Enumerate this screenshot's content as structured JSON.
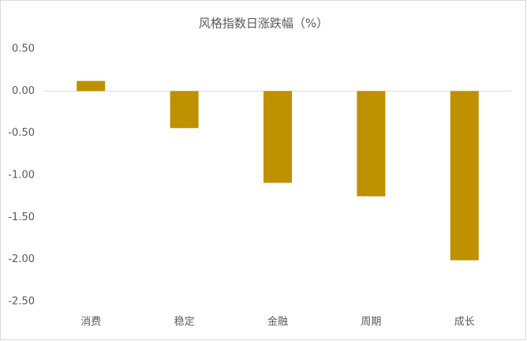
{
  "chart_data": {
    "type": "bar",
    "title": "风格指数日涨跌幅（%）",
    "categories": [
      "消费",
      "稳定",
      "金融",
      "周期",
      "成长"
    ],
    "values": [
      0.12,
      -0.44,
      -1.09,
      -1.25,
      -2.01
    ],
    "color": "#bf9000",
    "ylim": [
      -2.5,
      0.5
    ],
    "yticks": [
      {
        "value": 0.5,
        "label": "0.50"
      },
      {
        "value": 0,
        "label": "0.00"
      },
      {
        "value": -0.5,
        "label": "-0.50"
      },
      {
        "value": -1,
        "label": "-1.00"
      },
      {
        "value": -1.5,
        "label": "-1.50"
      },
      {
        "value": -2,
        "label": "-2.00"
      },
      {
        "value": -2.5,
        "label": "-2.50"
      }
    ],
    "grid": false
  }
}
